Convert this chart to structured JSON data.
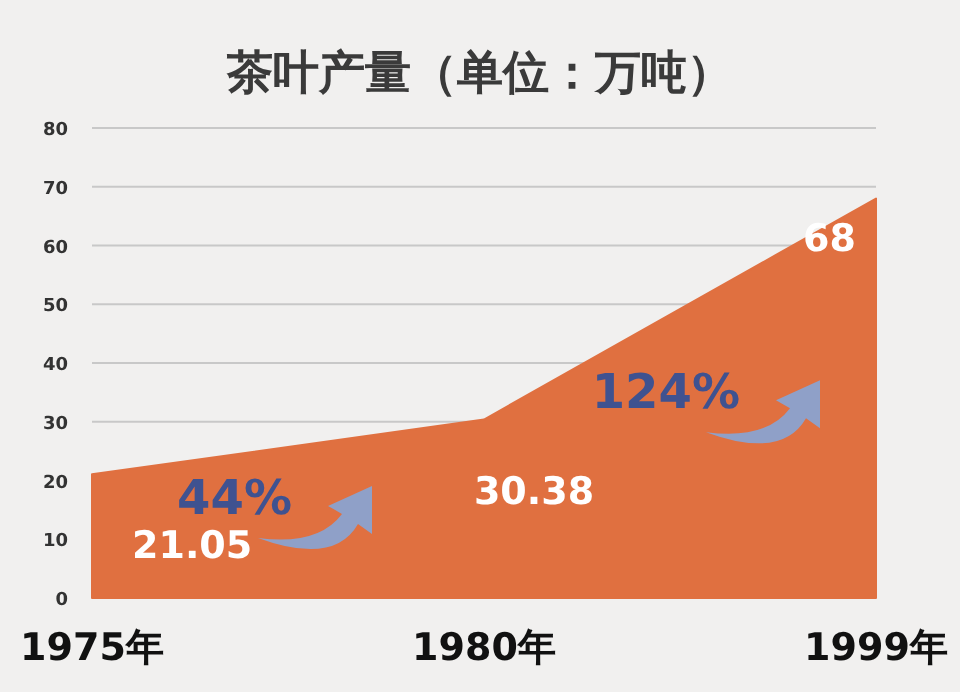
{
  "chart_data": {
    "type": "area",
    "title": "茶叶产量（单位：万吨）",
    "categories": [
      "1975年",
      "1980年",
      "1999年"
    ],
    "values": [
      21.05,
      30.38,
      68
    ],
    "color": "#e07040",
    "ylim": [
      0,
      80
    ],
    "yticks": [
      0,
      10,
      20,
      30,
      40,
      50,
      60,
      70,
      80
    ],
    "grid": "y",
    "data_labels": true,
    "annotations": [
      "44%",
      "124%"
    ]
  }
}
